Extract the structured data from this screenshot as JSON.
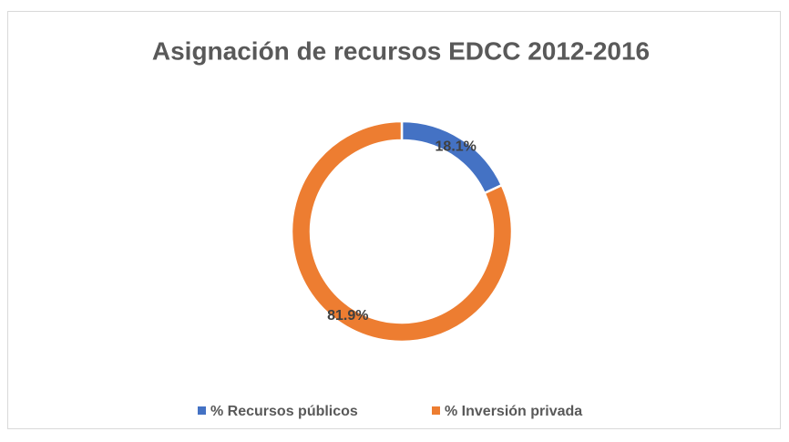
{
  "chart_data": {
    "type": "donut",
    "title": "Asignación de recursos EDCC 2012-2016",
    "categories": [
      "% Recursos públicos",
      "% Inversión privada"
    ],
    "values": [
      18.1,
      81.9
    ],
    "value_labels": [
      "18.1%",
      "81.9%"
    ],
    "colors": [
      "#4472c4",
      "#ed7d31"
    ],
    "legend": "bottom"
  }
}
